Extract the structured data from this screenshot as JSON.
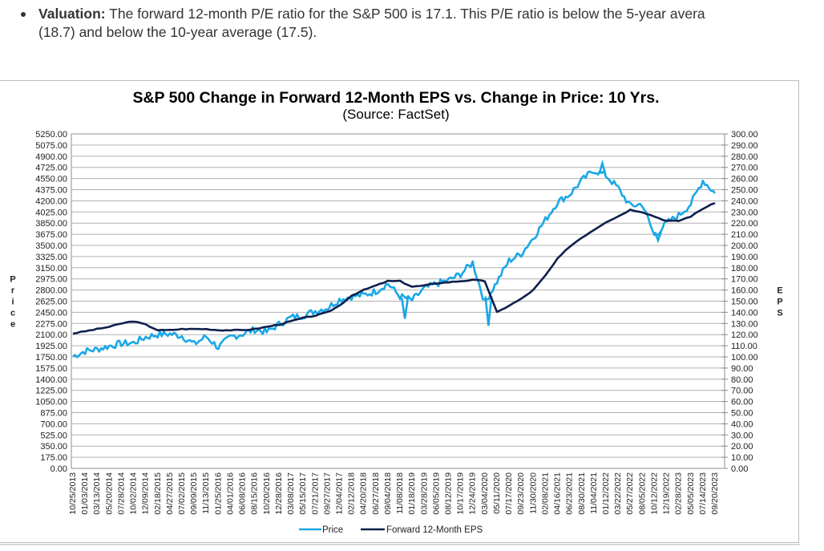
{
  "bullet": {
    "label": "Valuation:",
    "text": " The forward 12-month P/E ratio for the S&P 500 is 17.1. This P/E ratio is below the 5-year avera",
    "text_line2": "(18.7) and below the 10-year average (17.5)."
  },
  "colors": {
    "price": "#1aa7e6",
    "eps": "#0f1f4d",
    "grid": "#b0b0b0"
  },
  "chart_data": {
    "type": "line",
    "title": "S&P 500 Change in Forward 12-Month EPS vs. Change in Price: 10 Yrs.",
    "subtitle": "(Source: FactSet)",
    "ylabel_left": "Price",
    "ylabel_right": "EPS",
    "ylim_left": [
      0,
      5250
    ],
    "ylim_right": [
      0,
      300
    ],
    "grid": true,
    "legend_position": "bottom-center",
    "left_ticks": [
      "5250.00",
      "5075.00",
      "4900.00",
      "4725.00",
      "4550.00",
      "4375.00",
      "4200.00",
      "4025.00",
      "3850.00",
      "3675.00",
      "3500.00",
      "3325.00",
      "3150.00",
      "2975.00",
      "2800.00",
      "2625.00",
      "2450.00",
      "2275.00",
      "2100.00",
      "1925.00",
      "1750.00",
      "1575.00",
      "1400.00",
      "1225.00",
      "1050.00",
      "875.00",
      "700.00",
      "525.00",
      "350.00",
      "175.00",
      "0.00"
    ],
    "right_ticks": [
      "300.00",
      "290.00",
      "280.00",
      "270.00",
      "260.00",
      "250.00",
      "240.00",
      "230.00",
      "220.00",
      "210.00",
      "200.00",
      "190.00",
      "180.00",
      "170.00",
      "160.00",
      "150.00",
      "140.00",
      "130.00",
      "120.00",
      "110.00",
      "100.00",
      "90.00",
      "80.00",
      "70.00",
      "60.00",
      "50.00",
      "40.00",
      "30.00",
      "20.00",
      "10.00",
      "0.00"
    ],
    "x_ticks": [
      "10/25/2013",
      "01/03/2014",
      "03/13/2014",
      "05/20/2014",
      "07/28/2014",
      "10/02/2014",
      "12/09/2014",
      "02/18/2015",
      "04/27/2015",
      "07/02/2015",
      "09/09/2015",
      "11/13/2015",
      "01/25/2016",
      "04/01/2016",
      "06/08/2016",
      "08/15/2016",
      "10/20/2016",
      "12/28/2016",
      "03/08/2017",
      "05/15/2017",
      "07/21/2017",
      "09/27/2017",
      "12/04/2017",
      "02/12/2018",
      "04/20/2018",
      "06/27/2018",
      "09/04/2018",
      "11/08/2018",
      "01/18/2019",
      "03/28/2019",
      "06/05/2019",
      "08/12/2019",
      "10/17/2019",
      "12/24/2019",
      "03/04/2020",
      "05/11/2020",
      "07/17/2020",
      "09/23/2020",
      "11/30/2020",
      "02/08/2021",
      "04/16/2021",
      "06/23/2021",
      "08/30/2021",
      "11/04/2021",
      "01/12/2022",
      "03/22/2022",
      "05/27/2022",
      "08/05/2022",
      "10/12/2022",
      "12/19/2022",
      "02/28/2023",
      "05/05/2023",
      "07/14/2023",
      "09/20/2023"
    ],
    "series": [
      {
        "name": "Price",
        "axis": "left",
        "x_index": [
          0,
          1,
          2,
          3,
          4,
          5,
          6,
          7,
          8,
          9,
          10,
          11,
          12,
          13,
          14,
          15,
          16,
          17,
          18,
          19,
          20,
          21,
          22,
          23,
          24,
          25,
          26,
          27,
          28,
          29,
          30,
          31,
          32,
          33,
          34,
          35,
          36,
          37,
          38,
          39,
          40,
          41,
          42,
          43,
          44,
          45,
          46,
          47,
          48,
          49,
          50,
          51,
          52,
          53
        ],
        "values": [
          1760,
          1840,
          1870,
          1920,
          1960,
          1970,
          2060,
          2100,
          2110,
          2080,
          1950,
          2070,
          1900,
          2060,
          2110,
          2180,
          2140,
          2260,
          2370,
          2400,
          2470,
          2520,
          2650,
          2700,
          2720,
          2780,
          2900,
          2700,
          2640,
          2820,
          2900,
          2950,
          3050,
          3230,
          2600,
          2930,
          3260,
          3370,
          3620,
          3900,
          4180,
          4300,
          4520,
          4680,
          4600,
          4400,
          4120,
          4150,
          3650,
          3850,
          3970,
          4150,
          4520,
          4320
        ],
        "annotations": {
          "covid_low_2020": 2240,
          "low_2018": 2350,
          "peak_2022": 4790,
          "low_2022": 3580
        }
      },
      {
        "name": "Forward 12-Month EPS",
        "axis": "right",
        "x_index": [
          0,
          1,
          2,
          3,
          4,
          5,
          6,
          7,
          8,
          9,
          10,
          11,
          12,
          13,
          14,
          15,
          16,
          17,
          18,
          19,
          20,
          21,
          22,
          23,
          24,
          25,
          26,
          27,
          28,
          29,
          30,
          31,
          32,
          33,
          34,
          35,
          36,
          37,
          38,
          39,
          40,
          41,
          42,
          43,
          44,
          45,
          46,
          47,
          48,
          49,
          50,
          51,
          52,
          53
        ],
        "values": [
          121,
          123,
          125,
          127,
          130,
          132,
          129,
          124,
          124,
          125,
          125,
          125,
          124,
          124,
          124,
          125,
          127,
          129,
          132,
          135,
          137,
          140,
          146,
          155,
          160,
          164,
          168,
          168,
          163,
          164,
          166,
          167,
          168,
          169,
          168,
          140,
          146,
          152,
          160,
          173,
          188,
          199,
          207,
          214,
          221,
          226,
          232,
          230,
          226,
          222,
          222,
          226,
          233,
          238
        ]
      }
    ]
  },
  "legend": {
    "price_label": "Price",
    "eps_label": "Forward 12-Month EPS"
  }
}
